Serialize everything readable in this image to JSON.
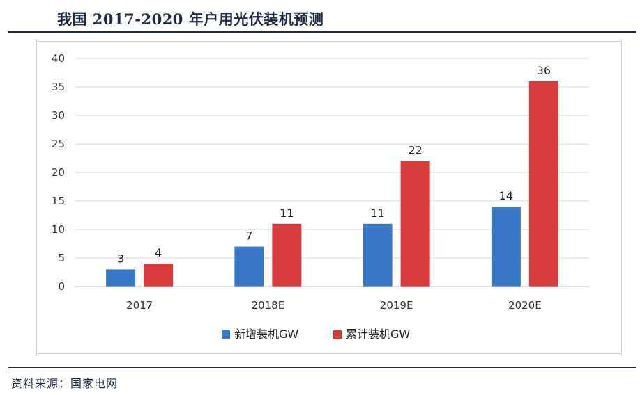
{
  "title": "我国 2017-2020 年户用光伏装机预测",
  "source": "资料来源：国家电网",
  "colors": {
    "new": "#3a78c8",
    "cumulative": "#d63a3a",
    "grid": "#d9d9d9",
    "rule": "#1f2a4a"
  },
  "chart_data": {
    "type": "bar",
    "categories": [
      "2017",
      "2018E",
      "2019E",
      "2020E"
    ],
    "series": [
      {
        "name": "新增装机GW",
        "values": [
          3,
          7,
          11,
          14
        ]
      },
      {
        "name": "累计装机GW",
        "values": [
          4,
          11,
          22,
          36
        ]
      }
    ],
    "ylim": [
      0,
      40
    ],
    "yticks": [
      0,
      5,
      10,
      15,
      20,
      25,
      30,
      35,
      40
    ],
    "grid": true,
    "legend": "bottom"
  }
}
